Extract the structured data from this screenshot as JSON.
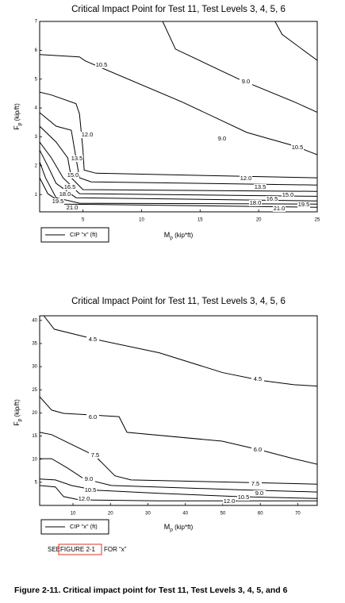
{
  "chart_data": [
    {
      "type": "contour",
      "title": "Critical Impact Point for Test 11, Test Levels 3, 4, 5, 6",
      "xlabel": {
        "symbol": "M",
        "subscript": "p",
        "unit": "(kip*ft)"
      },
      "ylabel": {
        "symbol": "F",
        "subscript": "p",
        "unit": "(kip/ft)"
      },
      "legend": "CIP \"x\" (ft)",
      "xlim": [
        1.3,
        25
      ],
      "ylim": [
        0.4,
        7
      ],
      "xticks": [
        5,
        10,
        15,
        20,
        25
      ],
      "yticks": [
        1,
        2,
        3,
        4,
        5,
        6,
        7
      ],
      "series": [
        {
          "name": null,
          "color": "#000000",
          "x": [
            21.4,
            22.0,
            25
          ],
          "y": [
            7,
            6.55,
            5.65
          ]
        },
        {
          "name": "9.0",
          "color": "#000000",
          "x": [
            11.8,
            12.9,
            18.3,
            23.1,
            25
          ],
          "y": [
            7,
            6.04,
            5.0,
            4.2,
            3.85
          ]
        },
        {
          "name": "10.5",
          "color": "#000000",
          "x": [
            1.3,
            4.7,
            5.2,
            13.5,
            19,
            23.1,
            25
          ],
          "y": [
            5.85,
            5.77,
            5.63,
            4.2,
            3.15,
            2.68,
            2.38
          ]
        },
        {
          "name": "12.0",
          "color": "#000000",
          "x": [
            1.3,
            2.3,
            4.4,
            4.7,
            5.0,
            5.1,
            6.1,
            25
          ],
          "y": [
            4.55,
            4.45,
            4.15,
            3.8,
            2.55,
            1.85,
            1.74,
            1.58
          ]
        },
        {
          "name": "13.5",
          "color": "#000000",
          "x": [
            1.3,
            2.7,
            4.0,
            4.4,
            4.7,
            5.7,
            25
          ],
          "y": [
            3.84,
            3.37,
            3.23,
            2.27,
            1.58,
            1.44,
            1.33
          ]
        },
        {
          "name": "15.0",
          "color": "#000000",
          "x": [
            1.3,
            2.7,
            3.7,
            4.0,
            5.0,
            25
          ],
          "y": [
            3.37,
            2.82,
            2.27,
            1.58,
            1.17,
            1.11
          ]
        },
        {
          "name": "16.5",
          "color": "#000000",
          "x": [
            1.3,
            2.3,
            3.3,
            4.7,
            25
          ],
          "y": [
            2.82,
            2.27,
            1.58,
            1.03,
            0.94
          ]
        },
        {
          "name": "18.0",
          "color": "#000000",
          "x": [
            1.3,
            2.0,
            2.7,
            4.4,
            25
          ],
          "y": [
            2.54,
            1.99,
            1.39,
            0.89,
            0.78
          ]
        },
        {
          "name": "19.5",
          "color": "#000000",
          "x": [
            1.3,
            1.8,
            2.7,
            4.7,
            25
          ],
          "y": [
            2.13,
            1.58,
            0.89,
            0.7,
            0.67
          ]
        },
        {
          "name": "21.0",
          "color": "#000000",
          "x": [
            1.3,
            2.0,
            3.3,
            25
          ],
          "y": [
            1.58,
            1.03,
            0.67,
            0.56
          ]
        }
      ]
    },
    {
      "type": "contour",
      "title": "Critical Impact Point for Test 11, Test Levels 3, 4, 5, 6",
      "xlabel": {
        "symbol": "M",
        "subscript": "p",
        "unit": "(kip*ft)"
      },
      "ylabel": {
        "symbol": "F",
        "subscript": "p",
        "unit": "(kip/ft)"
      },
      "legend": "CIP \"x\" (ft)",
      "xlim": [
        1.1,
        75.2
      ],
      "ylim": [
        0,
        41
      ],
      "xticks": [
        10,
        20,
        30,
        40,
        50,
        60,
        70
      ],
      "yticks": [
        5,
        10,
        15,
        20,
        25,
        30,
        35,
        40
      ],
      "series": [
        {
          "name": "4.5",
          "color": "#000000",
          "x": [
            2.2,
            5,
            16,
            33,
            50,
            60.4,
            69,
            75.2
          ],
          "y": [
            41,
            38.1,
            35.9,
            33,
            28.7,
            27,
            26.1,
            25.8
          ]
        },
        {
          "name": "6.0",
          "color": "#000000",
          "x": [
            1.1,
            4.3,
            7.5,
            22.3,
            24.4,
            49.8,
            60.4,
            68.9,
            75.2
          ],
          "y": [
            23.5,
            20.6,
            19.9,
            19.2,
            15.8,
            13.9,
            11.9,
            10.1,
            8.9
          ]
        },
        {
          "name": "7.5",
          "color": "#000000",
          "x": [
            1.1,
            4.3,
            9.6,
            15.9,
            21.2,
            25.5,
            54.1,
            75.2
          ],
          "y": [
            15.8,
            15.3,
            13.2,
            10.7,
            6.4,
            5.5,
            5.0,
            4.6
          ]
        },
        {
          "name": "9.0",
          "color": "#000000",
          "x": [
            1.1,
            4.3,
            8.5,
            12.8,
            20.2,
            54.1,
            75.2
          ],
          "y": [
            10.1,
            10.1,
            8.1,
            5.8,
            4.3,
            3.4,
            2.9
          ]
        },
        {
          "name": "10.5",
          "color": "#000000",
          "x": [
            1.1,
            5.3,
            9.6,
            15.9,
            32.9,
            54.1,
            75.2
          ],
          "y": [
            5.7,
            5.5,
            4.3,
            3.3,
            2.6,
            1.9,
            1.5
          ]
        },
        {
          "name": "12.0",
          "color": "#000000",
          "x": [
            1.1,
            5.3,
            7.5,
            11.7,
            32.9,
            75.2
          ],
          "y": [
            4.3,
            4.0,
            1.9,
            1.2,
            1.0,
            1.0
          ]
        }
      ]
    }
  ],
  "note": {
    "before": "SEE",
    "link": "FIGURE 2-1",
    "after": "FOR “x”"
  },
  "caption": "Figure 2-11. Critical impact point for Test 11, Test Levels 3, 4, 5, and 6"
}
